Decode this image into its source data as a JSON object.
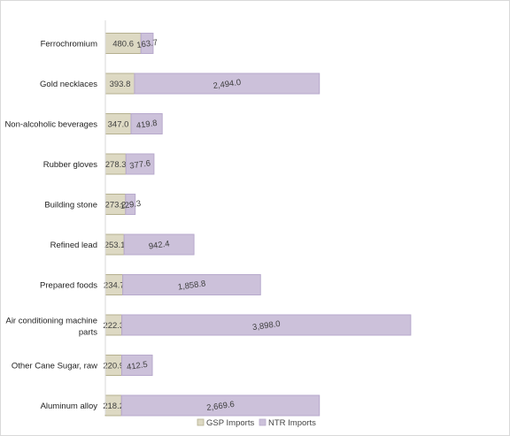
{
  "chart_data": {
    "type": "bar",
    "orientation": "horizontal",
    "stacked": true,
    "categories": [
      "Ferrochromium",
      "Gold necklaces",
      "Non-alcoholic beverages",
      "Rubber gloves",
      "Building stone",
      "Refined lead",
      "Prepared foods",
      "Air conditioning machine parts",
      "Other Cane Sugar, raw",
      "Aluminum alloy"
    ],
    "series": [
      {
        "name": "GSP Imports",
        "color": "#ddd9c3",
        "values": [
          480.6,
          393.8,
          347.0,
          278.3,
          273.2,
          253.1,
          234.7,
          222.3,
          220.9,
          218.2
        ],
        "labels": [
          "480.6",
          "393.8",
          "347.0",
          "278.3",
          "273.2",
          "253.1",
          "234.7",
          "222.3",
          "220.9",
          "218.2"
        ]
      },
      {
        "name": "NTR Imports",
        "color": "#ccc1da",
        "values": [
          163.7,
          2494.0,
          419.8,
          377.6,
          129.3,
          942.4,
          1858.8,
          3898.0,
          412.5,
          2669.6
        ],
        "labels": [
          "163.7",
          "2,494.0",
          "419.8",
          "377.6",
          "129.3",
          "942.4",
          "1,858.8",
          "3,898.0",
          "412.5",
          "2,669.6"
        ]
      }
    ],
    "legend": "bottom",
    "grid": false
  }
}
